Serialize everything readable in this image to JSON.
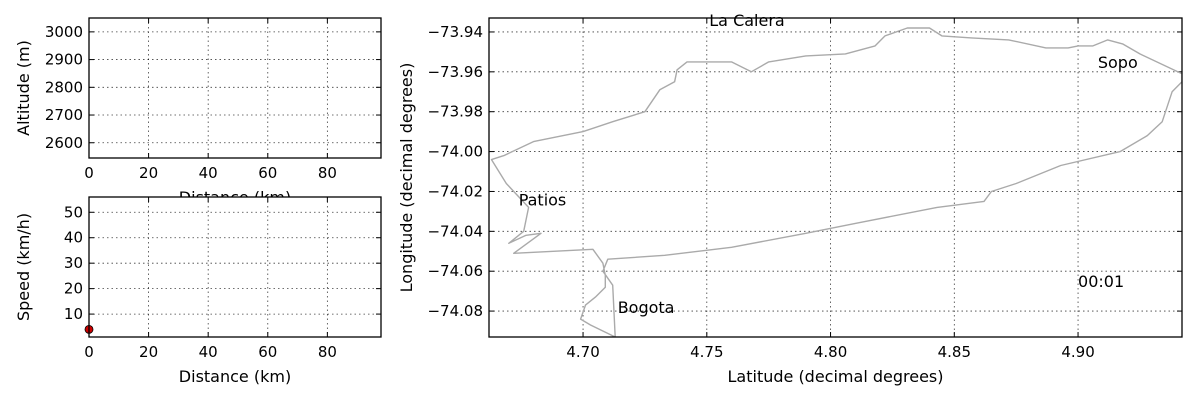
{
  "chart_data": [
    {
      "id": "altitude",
      "type": "line",
      "xlabel": "Distance (km)",
      "ylabel": "Altitude (m)",
      "xlim": [
        0,
        98
      ],
      "ylim": [
        2545,
        3050
      ],
      "xticks": [
        0,
        20,
        40,
        60,
        80
      ],
      "yticks": [
        2600,
        2700,
        2800,
        2900,
        3000
      ],
      "grid": true,
      "series": []
    },
    {
      "id": "speed",
      "type": "scatter",
      "xlabel": "Distance (km)",
      "ylabel": "Speed (km/h)",
      "xlim": [
        0,
        98
      ],
      "ylim": [
        1,
        56
      ],
      "xticks": [
        0,
        20,
        40,
        60,
        80
      ],
      "yticks": [
        10,
        20,
        30,
        40,
        50
      ],
      "grid": true,
      "series": [
        {
          "marker_color": "#cc0000",
          "points": [
            [
              0,
              4
            ]
          ]
        }
      ]
    },
    {
      "id": "map",
      "type": "line",
      "xlabel": "Latitude (decimal degrees)",
      "ylabel": "Longitude (decimal degrees)",
      "xlim": [
        4.662,
        4.942
      ],
      "ylim": [
        -74.093,
        -73.933
      ],
      "xticks": [
        4.7,
        4.75,
        4.8,
        4.85,
        4.9
      ],
      "xtick_labels": [
        "4.70",
        "4.75",
        "4.80",
        "4.85",
        "4.90"
      ],
      "yticks": [
        -74.08,
        -74.06,
        -74.04,
        -74.02,
        -74.0,
        -73.98,
        -73.96,
        -73.94
      ],
      "ytick_labels": [
        "−74.08",
        "−74.06",
        "−74.04",
        "−74.02",
        "−74.00",
        "−73.98",
        "−73.96",
        "−73.94"
      ],
      "grid": true,
      "route_color": "#aaaaaa",
      "annotations": [
        {
          "text": "Bogota",
          "x": 4.714,
          "y": -74.081
        },
        {
          "text": "Patios",
          "x": 4.674,
          "y": -74.027
        },
        {
          "text": "La Calera",
          "x": 4.751,
          "y": -73.937
        },
        {
          "text": "Sopo",
          "x": 4.908,
          "y": -73.958
        },
        {
          "text": "00:01",
          "x": 4.9,
          "y": -74.068
        }
      ],
      "route": [
        [
          4.713,
          -74.093
        ],
        [
          4.703,
          -74.087
        ],
        [
          4.699,
          -74.084
        ],
        [
          4.701,
          -74.077
        ],
        [
          4.705,
          -74.073
        ],
        [
          4.709,
          -74.068
        ],
        [
          4.709,
          -74.062
        ],
        [
          4.708,
          -74.056
        ],
        [
          4.704,
          -74.049
        ],
        [
          4.688,
          -74.05
        ],
        [
          4.672,
          -74.051
        ],
        [
          4.683,
          -74.041
        ],
        [
          4.677,
          -74.042
        ],
        [
          4.67,
          -74.046
        ],
        [
          4.676,
          -74.04
        ],
        [
          4.678,
          -74.028
        ],
        [
          4.669,
          -74.016
        ],
        [
          4.663,
          -74.004
        ],
        [
          4.668,
          -74.002
        ],
        [
          4.68,
          -73.995
        ],
        [
          4.7,
          -73.99
        ],
        [
          4.712,
          -73.985
        ],
        [
          4.725,
          -73.98
        ],
        [
          4.731,
          -73.969
        ],
        [
          4.737,
          -73.965
        ],
        [
          4.738,
          -73.959
        ],
        [
          4.742,
          -73.955
        ],
        [
          4.76,
          -73.955
        ],
        [
          4.768,
          -73.96
        ],
        [
          4.775,
          -73.955
        ],
        [
          4.79,
          -73.952
        ],
        [
          4.806,
          -73.951
        ],
        [
          4.818,
          -73.947
        ],
        [
          4.822,
          -73.942
        ],
        [
          4.831,
          -73.938
        ],
        [
          4.84,
          -73.938
        ],
        [
          4.845,
          -73.942
        ],
        [
          4.857,
          -73.943
        ],
        [
          4.872,
          -73.944
        ],
        [
          4.887,
          -73.948
        ],
        [
          4.896,
          -73.948
        ],
        [
          4.9,
          -73.947
        ],
        [
          4.906,
          -73.947
        ],
        [
          4.912,
          -73.944
        ],
        [
          4.918,
          -73.946
        ],
        [
          4.925,
          -73.951
        ],
        [
          4.942,
          -73.961
        ],
        [
          4.942,
          -73.965
        ],
        [
          4.938,
          -73.97
        ],
        [
          4.934,
          -73.985
        ],
        [
          4.928,
          -73.992
        ],
        [
          4.917,
          -74.0
        ],
        [
          4.893,
          -74.007
        ],
        [
          4.875,
          -74.016
        ],
        [
          4.865,
          -74.02
        ],
        [
          4.862,
          -74.025
        ],
        [
          4.843,
          -74.028
        ],
        [
          4.81,
          -74.036
        ],
        [
          4.79,
          -74.041
        ],
        [
          4.76,
          -74.048
        ],
        [
          4.733,
          -74.052
        ],
        [
          4.71,
          -74.054
        ],
        [
          4.708,
          -74.06
        ],
        [
          4.712,
          -74.067
        ],
        [
          4.713,
          -74.093
        ]
      ]
    }
  ]
}
